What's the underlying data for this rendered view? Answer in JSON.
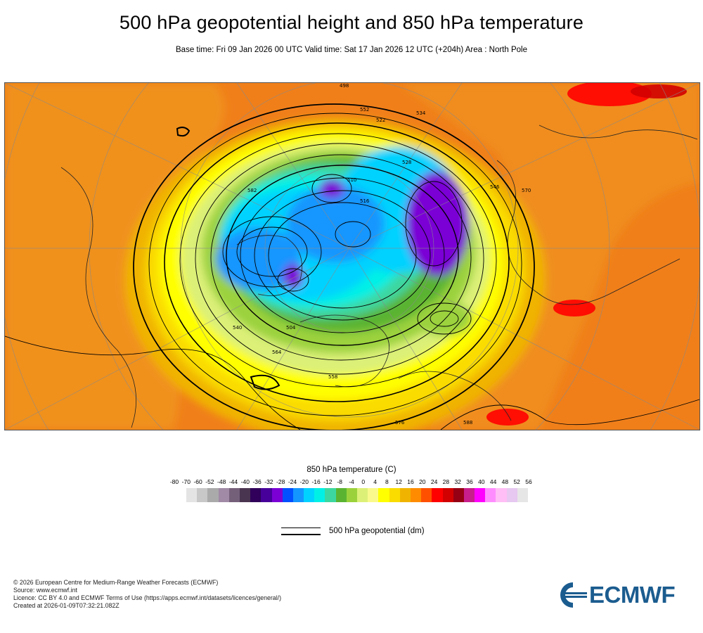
{
  "header": {
    "title": "500 hPa geopotential height and 850 hPa temperature",
    "subtitle": "Base time: Fri 09 Jan 2026 00 UTC Valid time: Sat 17 Jan 2026 12 UTC (+204h) Area : North Pole"
  },
  "map": {
    "area": "North Pole",
    "contour_labels": [
      "498",
      "504",
      "510",
      "516",
      "522",
      "528",
      "534",
      "540",
      "546",
      "552",
      "558",
      "564",
      "570",
      "576",
      "582",
      "588"
    ]
  },
  "colorbar": {
    "title": "850 hPa temperature (C)",
    "ticks": [
      "-80",
      "-70",
      "-60",
      "-52",
      "-48",
      "-44",
      "-40",
      "-36",
      "-32",
      "-28",
      "-24",
      "-20",
      "-16",
      "-12",
      "-8",
      "-4",
      "0",
      "4",
      "8",
      "12",
      "16",
      "20",
      "24",
      "28",
      "32",
      "36",
      "40",
      "44",
      "48",
      "52",
      "56"
    ],
    "colors": [
      "#e4e4e4",
      "#c8c8c8",
      "#aaaaaa",
      "#a08aa5",
      "#75607a",
      "#4a3550",
      "#30005a",
      "#47009a",
      "#7a00d6",
      "#0050ff",
      "#1496ff",
      "#00d2ff",
      "#00f0e6",
      "#3cd7a0",
      "#5ab432",
      "#9bd23c",
      "#dcf078",
      "#fafa8c",
      "#ffff00",
      "#fadc00",
      "#f0b400",
      "#ff8c00",
      "#ff5000",
      "#ff0000",
      "#d20000",
      "#960014",
      "#c81e8c",
      "#ff00ff",
      "#ff8cff",
      "#ffbef5",
      "#e6c8f0",
      "#e6e6e6"
    ]
  },
  "legend": {
    "line_label": "500 hPa geopotential (dm)"
  },
  "footer": {
    "line1": "© 2026 European Centre for Medium-Range Weather Forecasts (ECMWF)",
    "line2": "Source: www.ecmwf.int",
    "line3": "Licence: CC BY 4.0 and ECMWF Terms of Use (https://apps.ecmwf.int/datasets/licences/general/)",
    "line4": "Created at 2026-01-09T07:32:21.082Z"
  },
  "logo": {
    "text": "ECMWF",
    "color": "#1b5c8f"
  }
}
